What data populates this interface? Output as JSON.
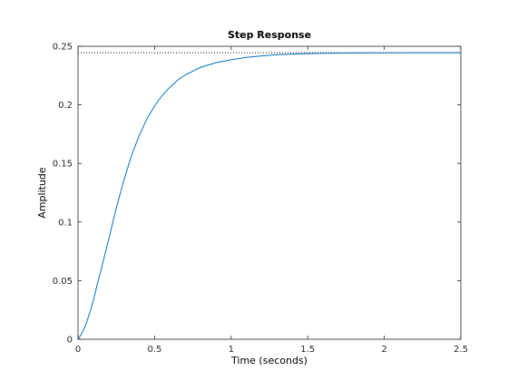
{
  "colors": {
    "response_line": "#0072bd",
    "steady_state_line": "#000000",
    "axes": "#262626",
    "background": "#ffffff"
  },
  "chart_data": {
    "type": "line",
    "title": "Step Response",
    "xlabel": "Time (seconds)",
    "ylabel": "Amplitude",
    "xlim": [
      0,
      2.5
    ],
    "ylim": [
      0,
      0.25
    ],
    "grid": false,
    "x_ticks": [
      0,
      0.5,
      1,
      1.5,
      2,
      2.5
    ],
    "x_tick_labels": [
      "0",
      "0.5",
      "1",
      "1.5",
      "2",
      "2.5"
    ],
    "y_ticks": [
      0,
      0.05,
      0.1,
      0.15,
      0.2,
      0.25
    ],
    "y_tick_labels": [
      "0",
      "0.05",
      "0.1",
      "0.15",
      "0.2",
      "0.25"
    ],
    "steady_state_value": 0.2445,
    "series": [
      {
        "x": [
          0,
          0.02,
          0.05,
          0.08,
          0.1,
          0.12,
          0.15,
          0.2,
          0.25,
          0.3,
          0.35,
          0.4,
          0.45,
          0.5,
          0.55,
          0.6,
          0.65,
          0.7,
          0.8,
          0.9,
          1.0,
          1.1,
          1.2,
          1.3,
          1.4,
          1.5,
          1.6,
          1.8,
          2.0,
          2.2,
          2.5
        ],
        "y": [
          0,
          0.004,
          0.012,
          0.024,
          0.033,
          0.044,
          0.059,
          0.085,
          0.112,
          0.136,
          0.157,
          0.174,
          0.188,
          0.199,
          0.208,
          0.215,
          0.221,
          0.2255,
          0.232,
          0.236,
          0.2385,
          0.2405,
          0.2418,
          0.2428,
          0.2433,
          0.2437,
          0.244,
          0.2443,
          0.2444,
          0.2445,
          0.2445
        ]
      }
    ]
  }
}
